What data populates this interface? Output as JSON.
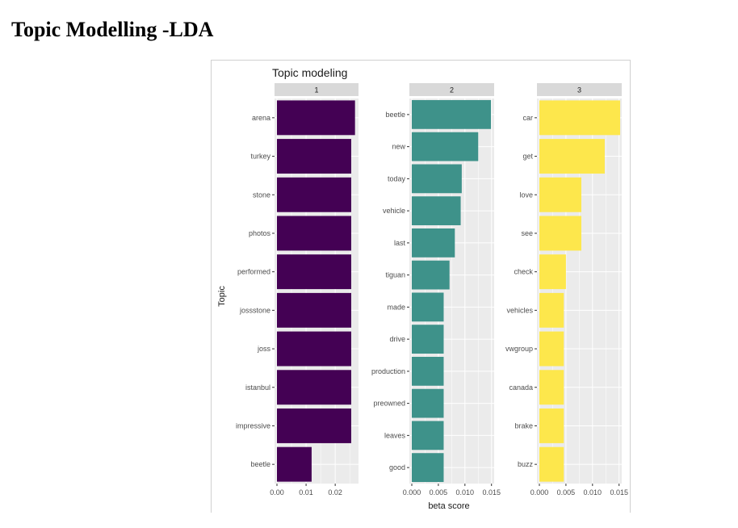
{
  "page": {
    "title": "Topic Modelling -LDA"
  },
  "chart_data": {
    "type": "bar",
    "orientation": "horizontal",
    "title": "Topic modeling",
    "xlabel": "beta score",
    "ylabel": "Topic",
    "grid": true,
    "facets": [
      {
        "label": "1",
        "color": "#440154",
        "xlim": [
          0,
          0.028
        ],
        "ticks": [
          0.0,
          0.01,
          0.02
        ],
        "tick_labels": [
          "0.00",
          "0.01",
          "0.02"
        ],
        "terms": [
          "arena",
          "turkey",
          "stone",
          "photos",
          "performed",
          "jossstone",
          "joss",
          "istanbul",
          "impressive",
          "beetle"
        ],
        "values": [
          0.0268,
          0.0255,
          0.0255,
          0.0255,
          0.0255,
          0.0255,
          0.0255,
          0.0255,
          0.0255,
          0.0119
        ]
      },
      {
        "label": "2",
        "color": "#3E928A",
        "xlim": [
          0,
          0.0155
        ],
        "ticks": [
          0.0,
          0.005,
          0.01,
          0.015
        ],
        "tick_labels": [
          "0.000",
          "0.005",
          "0.010",
          "0.015"
        ],
        "terms": [
          "beetle",
          "new",
          "today",
          "vehicle",
          "last",
          "tiguan",
          "made",
          "drive",
          "production",
          "preowned",
          "leaves",
          "good"
        ],
        "values": [
          0.0149,
          0.0125,
          0.0094,
          0.0092,
          0.0081,
          0.0071,
          0.006,
          0.006,
          0.006,
          0.006,
          0.006,
          0.006
        ]
      },
      {
        "label": "3",
        "color": "#FDE74C",
        "xlim": [
          0,
          0.0155
        ],
        "ticks": [
          0.0,
          0.005,
          0.01,
          0.015
        ],
        "tick_labels": [
          "0.000",
          "0.005",
          "0.010",
          "0.015"
        ],
        "terms": [
          "car",
          "get",
          "love",
          "see",
          "check",
          "vehicles",
          "vwgroup",
          "canada",
          "brake",
          "buzz"
        ],
        "values": [
          0.0152,
          0.0123,
          0.0079,
          0.0079,
          0.005,
          0.0046,
          0.0046,
          0.0046,
          0.0046,
          0.0046
        ]
      }
    ]
  }
}
